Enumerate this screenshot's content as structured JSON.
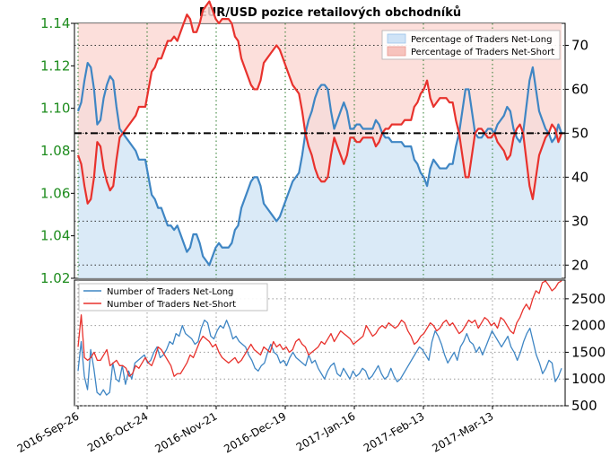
{
  "chart_data": [
    {
      "type": "line",
      "title": "EUR/USD pozice retailových obchodníků",
      "y_left": {
        "ylim": [
          1.02,
          1.14
        ],
        "ticks": [
          "1.02",
          "1.04",
          "1.06",
          "1.08",
          "1.10",
          "1.12",
          "1.14"
        ],
        "color": "#1e8c1e"
      },
      "y_right": {
        "ylim": [
          17,
          75
        ],
        "ticks": [
          "20",
          "30",
          "40",
          "50",
          "60",
          "70"
        ]
      },
      "x_ticks": [
        "2016-Sep-26",
        "2016-Oct-24",
        "2016-Nov-21",
        "2016-Dec-19",
        "2017-Jan-16",
        "2017-Feb-13",
        "2017-Mar-13"
      ],
      "reference_line": 50,
      "legend_position": "top-right",
      "series": [
        {
          "name": "Percentage of Traders Net-Long",
          "color": "#3f86c4",
          "values": [
            55,
            57,
            62,
            66,
            65,
            60,
            52,
            53,
            58,
            61,
            63,
            62,
            56,
            51,
            50,
            49,
            48,
            47,
            46,
            44,
            44,
            44,
            40,
            36,
            35,
            33,
            33,
            31,
            29,
            29,
            28,
            29,
            27,
            25,
            23,
            24,
            27,
            27,
            25,
            22,
            21,
            20,
            22,
            24,
            25,
            24,
            24,
            24,
            25,
            28,
            29,
            33,
            35,
            37,
            39,
            40,
            40,
            38,
            34,
            33,
            32,
            31,
            30,
            31,
            33,
            35,
            37,
            39,
            40,
            41,
            45,
            50,
            53,
            55,
            58,
            60,
            61,
            61,
            60,
            55,
            51,
            53,
            55,
            57,
            55,
            51,
            51,
            52,
            52,
            51,
            51,
            51,
            51,
            53,
            52,
            50,
            49,
            49,
            48,
            48,
            48,
            48,
            47,
            47,
            47,
            44,
            43,
            41,
            40,
            38,
            42,
            44,
            43,
            42,
            42,
            42,
            43,
            43,
            47,
            50,
            55,
            60,
            60,
            55,
            50,
            49,
            49,
            50,
            51,
            51,
            50,
            52,
            53,
            54,
            56,
            55,
            51,
            49,
            48,
            50,
            56,
            62,
            65,
            60,
            55,
            53,
            51,
            50,
            48,
            49,
            52,
            50
          ]
        },
        {
          "name": "Percentage of Traders Net-Short",
          "color": "#e8322d",
          "values": [
            45,
            43,
            38,
            34,
            35,
            40,
            48,
            47,
            42,
            39,
            37,
            38,
            44,
            49,
            50,
            51,
            52,
            53,
            54,
            56,
            56,
            56,
            60,
            64,
            65,
            67,
            67,
            69,
            71,
            71,
            72,
            71,
            73,
            75,
            77,
            76,
            73,
            73,
            75,
            78,
            79,
            80,
            78,
            76,
            75,
            76,
            76,
            76,
            75,
            72,
            71,
            67,
            65,
            63,
            61,
            60,
            60,
            62,
            66,
            67,
            68,
            69,
            70,
            69,
            67,
            65,
            63,
            61,
            60,
            59,
            55,
            50,
            47,
            45,
            42,
            40,
            39,
            39,
            40,
            45,
            49,
            47,
            45,
            43,
            45,
            49,
            49,
            48,
            48,
            49,
            49,
            49,
            49,
            47,
            48,
            50,
            51,
            51,
            52,
            52,
            52,
            52,
            53,
            53,
            53,
            56,
            57,
            59,
            60,
            62,
            58,
            56,
            57,
            58,
            58,
            58,
            57,
            57,
            53,
            50,
            45,
            40,
            40,
            45,
            50,
            51,
            51,
            50,
            49,
            49,
            50,
            48,
            47,
            46,
            44,
            45,
            49,
            51,
            52,
            50,
            44,
            38,
            35,
            40,
            45,
            47,
            49,
            50,
            52,
            51,
            48,
            50
          ]
        }
      ]
    },
    {
      "type": "line",
      "ylim": [
        500,
        2850
      ],
      "y_ticks": [
        "500",
        "1000",
        "1500",
        "2000",
        "2500"
      ],
      "legend_position": "top-left",
      "series": [
        {
          "name": "Number of Traders Net-Long",
          "color": "#3f86c4",
          "values": [
            1150,
            1700,
            1050,
            800,
            1550,
            1200,
            750,
            700,
            800,
            700,
            750,
            1300,
            1000,
            950,
            1250,
            900,
            1150,
            1000,
            1300,
            1350,
            1400,
            1450,
            1300,
            1350,
            1500,
            1600,
            1400,
            1450,
            1550,
            1700,
            1650,
            1850,
            1800,
            2000,
            1850,
            1800,
            1750,
            1650,
            1700,
            1950,
            2100,
            2050,
            1800,
            1750,
            1900,
            2000,
            1950,
            2100,
            1950,
            1750,
            1800,
            1700,
            1650,
            1600,
            1450,
            1350,
            1200,
            1150,
            1250,
            1300,
            1500,
            1650,
            1500,
            1450,
            1300,
            1350,
            1250,
            1400,
            1500,
            1400,
            1350,
            1300,
            1250,
            1450,
            1300,
            1350,
            1200,
            1100,
            1000,
            1150,
            1250,
            1300,
            1100,
            1050,
            1200,
            1100,
            1000,
            1150,
            1050,
            1100,
            1200,
            1150,
            1000,
            1050,
            1150,
            1250,
            1100,
            1000,
            1050,
            1200,
            1050,
            950,
            1000,
            1100,
            1200,
            1300,
            1400,
            1500,
            1600,
            1550,
            1450,
            1350,
            1700,
            1900,
            1800,
            1650,
            1450,
            1300,
            1400,
            1500,
            1350,
            1600,
            1700,
            1850,
            1700,
            1650,
            1500,
            1600,
            1450,
            1600,
            1750,
            1900,
            1800,
            1700,
            1600,
            1700,
            1800,
            1600,
            1500,
            1350,
            1500,
            1700,
            1850,
            1950,
            1700,
            1450,
            1300,
            1100,
            1200,
            1350,
            1300,
            950,
            1050,
            1200
          ]
        },
        {
          "name": "Number of Traders Net-Short",
          "color": "#e8322d",
          "values": [
            1600,
            2200,
            1400,
            1350,
            1400,
            1500,
            1350,
            1350,
            1450,
            1550,
            1250,
            1300,
            1350,
            1250,
            1250,
            1200,
            1050,
            1100,
            1250,
            1200,
            1300,
            1400,
            1300,
            1250,
            1400,
            1600,
            1550,
            1450,
            1350,
            1250,
            1050,
            1100,
            1100,
            1200,
            1300,
            1450,
            1400,
            1550,
            1700,
            1800,
            1750,
            1700,
            1600,
            1650,
            1500,
            1400,
            1350,
            1300,
            1350,
            1400,
            1300,
            1350,
            1450,
            1550,
            1650,
            1550,
            1500,
            1450,
            1600,
            1550,
            1500,
            1700,
            1600,
            1650,
            1550,
            1600,
            1500,
            1550,
            1700,
            1750,
            1650,
            1600,
            1450,
            1500,
            1550,
            1600,
            1700,
            1650,
            1750,
            1850,
            1700,
            1800,
            1900,
            1850,
            1800,
            1750,
            1650,
            1700,
            1750,
            1800,
            2000,
            1900,
            1800,
            1850,
            1950,
            2000,
            1950,
            2050,
            2000,
            1950,
            2000,
            2100,
            2050,
            1900,
            1800,
            1650,
            1700,
            1800,
            1850,
            1950,
            2050,
            2000,
            1900,
            1950,
            2050,
            2100,
            2000,
            2050,
            1950,
            1850,
            1900,
            2000,
            2100,
            2050,
            2100,
            1950,
            2050,
            2150,
            2100,
            2000,
            2050,
            1950,
            2150,
            2100,
            2000,
            1900,
            1850,
            2050,
            2150,
            2300,
            2400,
            2300,
            2500,
            2650,
            2600,
            2800,
            2900,
            2750,
            2650,
            2700,
            2800,
            2850
          ]
        }
      ]
    }
  ]
}
